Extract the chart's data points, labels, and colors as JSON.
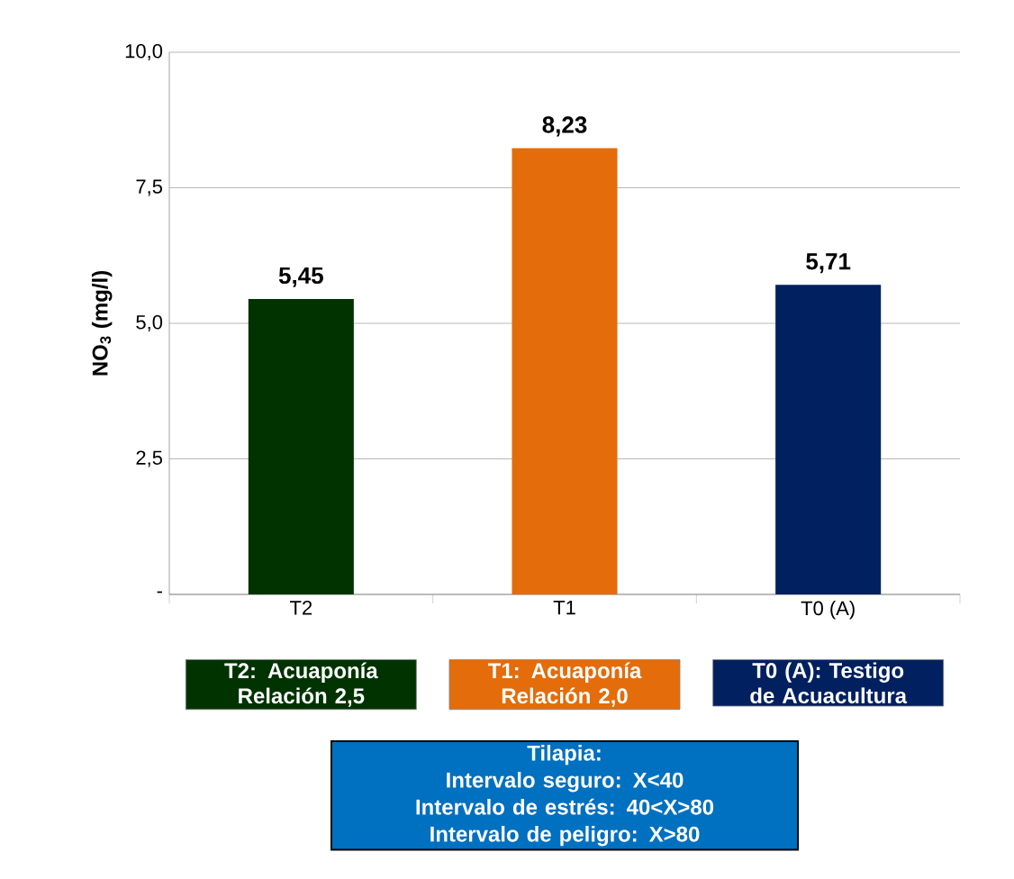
{
  "chart_data": {
    "type": "bar",
    "ylabel": "**NO$_{3}$ (mg/l)**",
    "categories": [
      "T2",
      "T1",
      "T0 (A)"
    ],
    "values": [
      5.45,
      8.23,
      5.71
    ],
    "colors": [
      "#003300",
      "#e46c0a",
      "#002060"
    ],
    "value_labels": [
      "5,45",
      "8,23",
      "5,71"
    ],
    "ylim": [
      0,
      10
    ],
    "yticks": [
      {
        "value": 0,
        "label": "-"
      },
      {
        "value": 2.5,
        "label": "2,5"
      },
      {
        "value": 5,
        "label": "5,0"
      },
      {
        "value": 7.5,
        "label": "7,5"
      },
      {
        "value": 10,
        "label": "10,0"
      }
    ],
    "grid": "y",
    "annotations": [
      "T2: Acuaponía Relación 2,5",
      "T1: Acuaponía Relación 2,0",
      "T0 (A): Testigo de Acuacultura",
      "Tilapia:",
      "Intervalo seguro: X<40",
      "Intervalo de estrés: 40<X>80",
      "Intervalo de peligro: X>80"
    ]
  }
}
